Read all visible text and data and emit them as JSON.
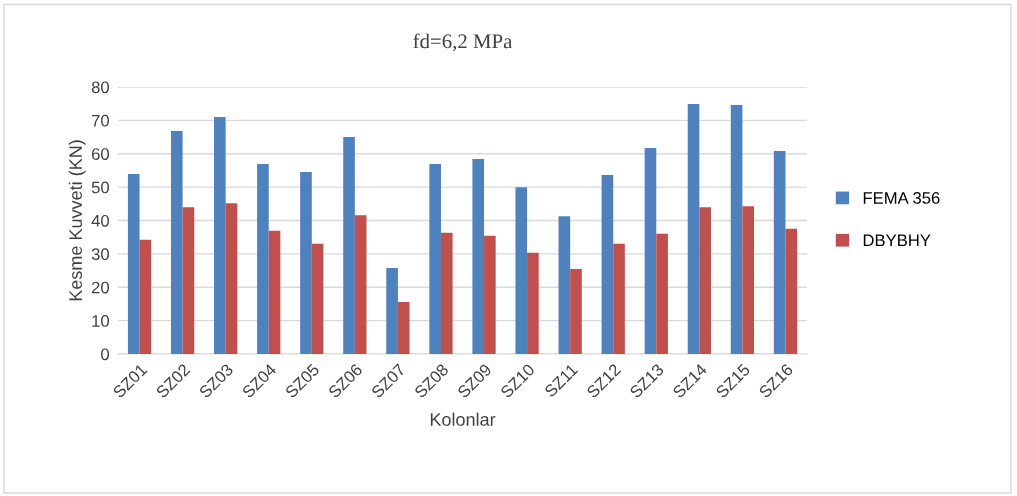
{
  "chart_data": {
    "type": "bar",
    "title": "fd=6,2 MPa",
    "xlabel": "Kolonlar",
    "ylabel": "Kesme Kuvveti (KN)",
    "categories": [
      "SZ01",
      "SZ02",
      "SZ03",
      "SZ04",
      "SZ05",
      "SZ06",
      "SZ07",
      "SZ08",
      "SZ09",
      "SZ10",
      "SZ11",
      "SZ12",
      "SZ13",
      "SZ14",
      "SZ15",
      "SZ16"
    ],
    "series": [
      {
        "name": "FEMA 356",
        "color": "#4f81bd",
        "values": [
          53.9,
          66.8,
          71.0,
          56.9,
          54.5,
          65.0,
          25.8,
          56.9,
          58.4,
          50.0,
          41.3,
          53.6,
          61.7,
          74.9,
          74.6,
          60.8
        ]
      },
      {
        "name": "DBYBHY",
        "color": "#c0504d",
        "values": [
          34.2,
          44.0,
          45.2,
          36.9,
          33.0,
          41.6,
          15.6,
          36.3,
          35.4,
          30.3,
          25.5,
          33.0,
          36.0,
          44.0,
          44.3,
          37.5
        ]
      }
    ],
    "ylim": [
      0,
      80
    ],
    "yticks": [
      0,
      10,
      20,
      30,
      40,
      50,
      60,
      70,
      80
    ],
    "grid": "y",
    "legend": "right"
  }
}
